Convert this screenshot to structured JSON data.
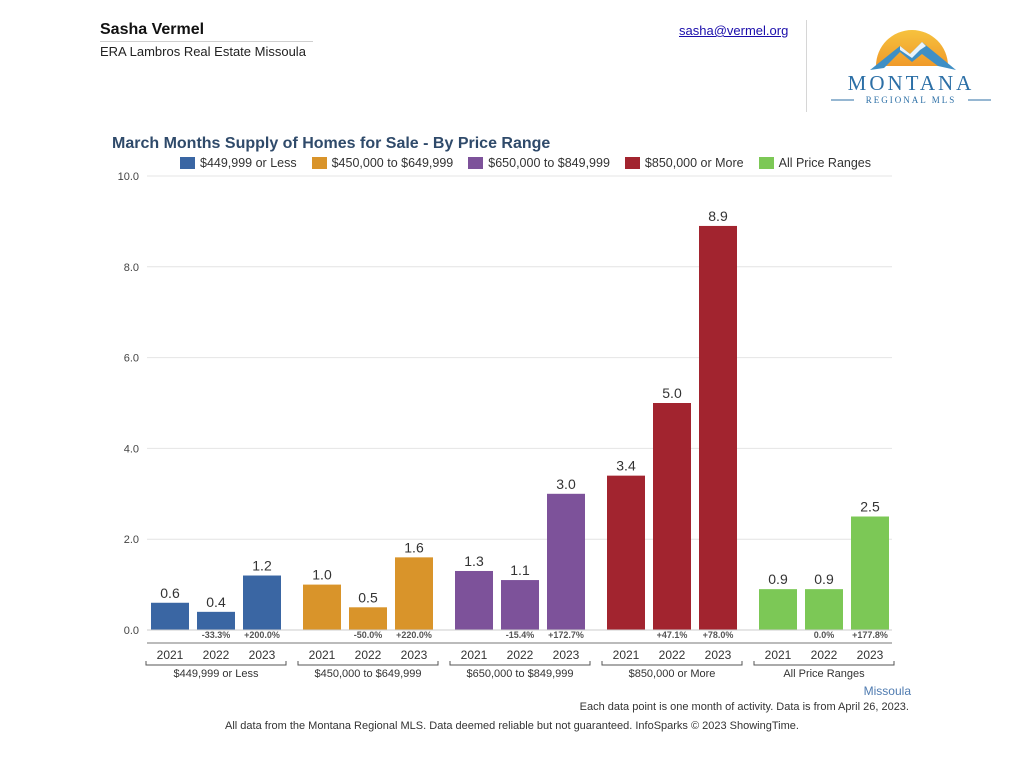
{
  "header": {
    "agent_name": "Sasha Vermel",
    "agent_office": "ERA Lambros Real Estate Missoula",
    "agent_email": "sasha@vermel.org",
    "logo_text": "MONTANA",
    "logo_subtext": "REGIONAL MLS"
  },
  "colors": {
    "series": [
      "#3a66a3",
      "#d9942a",
      "#7d529a",
      "#a2242f",
      "#7cc856"
    ],
    "title": "#2f4a6a",
    "grid": "#e4e4e4",
    "axis": "#777777"
  },
  "chart_data": {
    "type": "bar",
    "title": "March Months Supply of Homes for Sale - By Price Range",
    "ylim": [
      0,
      10
    ],
    "yticks": [
      "0.0",
      "2.0",
      "4.0",
      "6.0",
      "8.0",
      "10.0"
    ],
    "grid": true,
    "legend_position": "top",
    "years": [
      "2021",
      "2022",
      "2023"
    ],
    "groups": [
      {
        "name": "$449,999 or Less",
        "values": [
          0.6,
          0.4,
          1.2
        ],
        "labels": [
          "0.6",
          "0.4",
          "1.2"
        ],
        "changes": [
          "",
          "-33.3%",
          "+200.0%"
        ]
      },
      {
        "name": "$450,000 to $649,999",
        "values": [
          1.0,
          0.5,
          1.6
        ],
        "labels": [
          "1.0",
          "0.5",
          "1.6"
        ],
        "changes": [
          "",
          "-50.0%",
          "+220.0%"
        ]
      },
      {
        "name": "$650,000 to $849,999",
        "values": [
          1.3,
          1.1,
          3.0
        ],
        "labels": [
          "1.3",
          "1.1",
          "3.0"
        ],
        "changes": [
          "",
          "-15.4%",
          "+172.7%"
        ]
      },
      {
        "name": "$850,000 or More",
        "values": [
          3.4,
          5.0,
          8.9
        ],
        "labels": [
          "3.4",
          "5.0",
          "8.9"
        ],
        "changes": [
          "",
          "+47.1%",
          "+78.0%"
        ]
      },
      {
        "name": "All Price Ranges",
        "values": [
          0.9,
          0.9,
          2.5
        ],
        "labels": [
          "0.9",
          "0.9",
          "2.5"
        ],
        "changes": [
          "",
          "0.0%",
          "+177.8%"
        ]
      }
    ]
  },
  "footer": {
    "market": "Missoula",
    "note": "Each data point is one month of activity. Data is from April 26, 2023.",
    "disclaimer": "All data from the Montana Regional MLS. Data deemed reliable but not guaranteed. InfoSparks © 2023 ShowingTime."
  }
}
